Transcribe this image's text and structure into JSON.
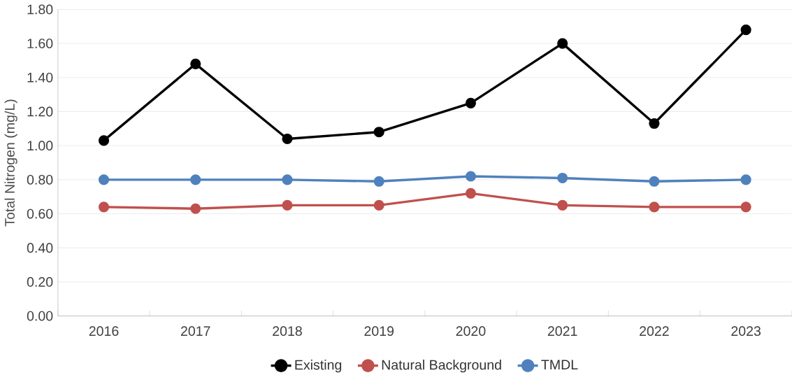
{
  "chart_data": {
    "type": "line",
    "ylabel": "Total Nitrogen (mg/L)",
    "categories": [
      "2016",
      "2017",
      "2018",
      "2019",
      "2020",
      "2021",
      "2022",
      "2023"
    ],
    "series": [
      {
        "name": "Existing",
        "color": "#000000",
        "values": [
          1.03,
          1.48,
          1.04,
          1.08,
          1.25,
          1.6,
          1.13,
          1.68
        ]
      },
      {
        "name": "Natural Background",
        "color": "#c0504d",
        "values": [
          0.64,
          0.63,
          0.65,
          0.65,
          0.72,
          0.65,
          0.64,
          0.64
        ]
      },
      {
        "name": "TMDL",
        "color": "#4f81bd",
        "values": [
          0.8,
          0.8,
          0.8,
          0.79,
          0.82,
          0.81,
          0.79,
          0.8
        ]
      }
    ],
    "ylim": [
      0,
      1.8
    ],
    "yticks": [
      {
        "value": 0,
        "label": "0.00"
      },
      {
        "value": 0.2,
        "label": "0.20"
      },
      {
        "value": 0.4,
        "label": "0.40"
      },
      {
        "value": 0.6,
        "label": "0.60"
      },
      {
        "value": 0.8,
        "label": "0.80"
      },
      {
        "value": 1.0,
        "label": "1.00"
      },
      {
        "value": 1.2,
        "label": "1.20"
      },
      {
        "value": 1.4,
        "label": "1.40"
      },
      {
        "value": 1.6,
        "label": "1.60"
      },
      {
        "value": 1.8,
        "label": "1.80"
      }
    ],
    "grid": "y",
    "legend": "bottom",
    "marker": "circle",
    "line_style": "solid"
  }
}
